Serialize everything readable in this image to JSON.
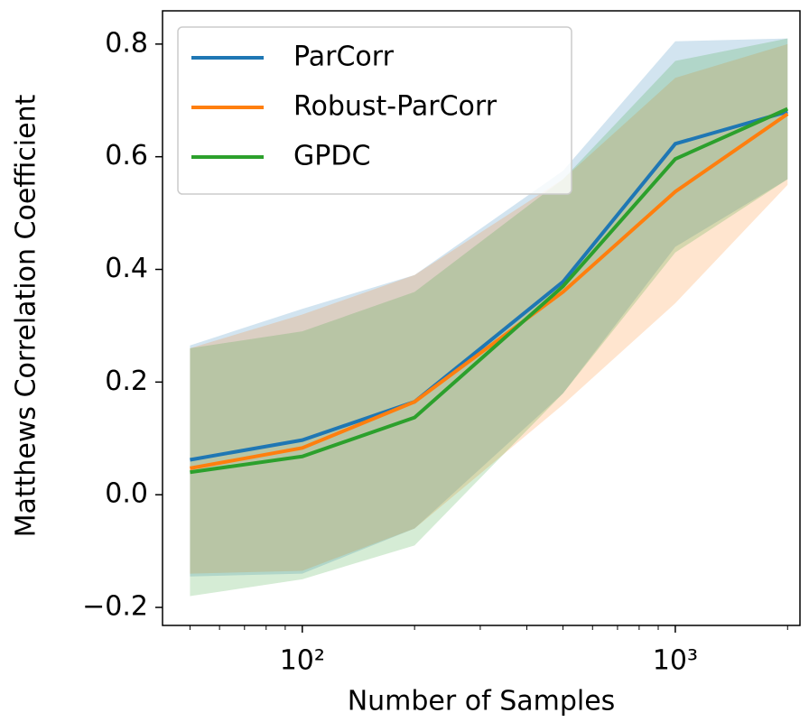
{
  "chart_data": {
    "type": "line_band",
    "xlabel": "Number of Samples",
    "ylabel": "Matthews Correlation Coefficient",
    "x": [
      50,
      100,
      200,
      500,
      1000,
      2000
    ],
    "xscale": "log",
    "xlim": [
      42.2,
      2159
    ],
    "xticks": [
      {
        "value": 100,
        "label": "10²"
      },
      {
        "value": 1000,
        "label": "10³"
      }
    ],
    "xminorticks": [
      50,
      60,
      70,
      80,
      90,
      200,
      300,
      400,
      500,
      600,
      700,
      800,
      900,
      2000
    ],
    "ylim": [
      -0.232,
      0.859
    ],
    "yticks": [
      {
        "value": -0.2,
        "label": "−0.2"
      },
      {
        "value": 0,
        "label": "0.0"
      },
      0.2,
      0.4,
      0.6,
      0.8
    ],
    "grid": false,
    "legend": "upper left",
    "band_opacity": 0.2,
    "series": [
      {
        "name": "ParCorr",
        "color": "#1f77b4",
        "values": [
          0.062,
          0.097,
          0.165,
          0.378,
          0.623,
          0.68
        ],
        "lower": [
          -0.145,
          -0.14,
          -0.06,
          0.18,
          0.44,
          0.56
        ],
        "upper": [
          0.265,
          0.33,
          0.39,
          0.575,
          0.805,
          0.81
        ]
      },
      {
        "name": "Robust-ParCorr",
        "color": "#ff7f0e",
        "values": [
          0.047,
          0.083,
          0.165,
          0.36,
          0.538,
          0.676
        ],
        "lower": [
          -0.14,
          -0.135,
          -0.06,
          0.16,
          0.34,
          0.55
        ],
        "upper": [
          0.26,
          0.32,
          0.39,
          0.56,
          0.74,
          0.8
        ]
      },
      {
        "name": "GPDC",
        "color": "#2ca02c",
        "values": [
          0.04,
          0.068,
          0.137,
          0.37,
          0.596,
          0.685
        ],
        "lower": [
          -0.18,
          -0.15,
          -0.09,
          0.18,
          0.43,
          0.56
        ],
        "upper": [
          0.26,
          0.29,
          0.36,
          0.56,
          0.77,
          0.81
        ]
      }
    ]
  }
}
